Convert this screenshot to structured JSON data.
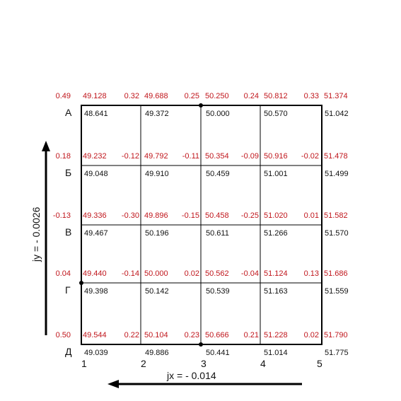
{
  "row_labels": [
    "А",
    "Б",
    "В",
    "Г",
    "Д"
  ],
  "col_labels": [
    "1",
    "2",
    "3",
    "4",
    "5"
  ],
  "slope_x_label": "jx = - 0.014",
  "slope_y_label": "jy = - 0.0026",
  "rows": [
    {
      "left": "0.49",
      "design": [
        "49.128",
        "49.688",
        "50.250",
        "50.812",
        "51.374"
      ],
      "work": [
        "0.32",
        "0.25",
        "0.24",
        "0.33"
      ],
      "black": [
        "48.641",
        "49.372",
        "50.000",
        "50.570",
        "51.042"
      ]
    },
    {
      "left": "0.18",
      "design": [
        "49.232",
        "49.792",
        "50.354",
        "50.916",
        "51.478"
      ],
      "work": [
        "-0.12",
        "-0.11",
        "-0.09",
        "-0.02"
      ],
      "black": [
        "49.048",
        "49.910",
        "50.459",
        "51.001",
        "51.499"
      ]
    },
    {
      "left": "-0.13",
      "design": [
        "49.336",
        "49.896",
        "50.458",
        "51.020",
        "51.582"
      ],
      "work": [
        "-0.30",
        "-0.15",
        "-0.25",
        "0.01"
      ],
      "black": [
        "49.467",
        "50.196",
        "50.611",
        "51.266",
        "51.570"
      ]
    },
    {
      "left": "0.04",
      "design": [
        "49.440",
        "50.000",
        "50.562",
        "51.124",
        "51.686"
      ],
      "work": [
        "-0.14",
        "0.02",
        "-0.04",
        "0.13"
      ],
      "black": [
        "49.398",
        "50.142",
        "50.539",
        "51.163",
        "51.559"
      ]
    },
    {
      "left": "0.50",
      "design": [
        "49.544",
        "50.104",
        "50.666",
        "51.228",
        "51.790"
      ],
      "work": [
        "0.22",
        "0.23",
        "0.21",
        "0.02"
      ],
      "black": [
        "49.039",
        "49.886",
        "50.441",
        "51.014",
        "51.775"
      ]
    }
  ]
}
